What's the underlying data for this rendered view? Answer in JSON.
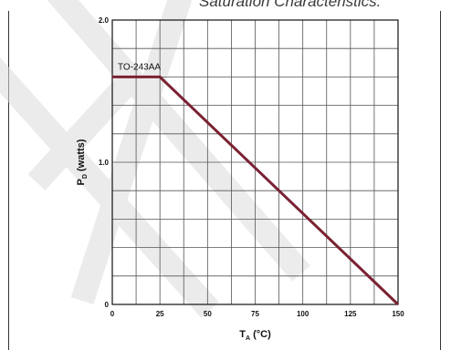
{
  "header": {
    "text": "Saturation Characteristics."
  },
  "chart_data": {
    "type": "line",
    "ylabel_main": "P",
    "ylabel_sub": "D",
    "ylabel_rest": " (watts)",
    "xlabel_main": "T",
    "xlabel_sub": "A",
    "xlabel_rest": " (°C)",
    "xlim": [
      0,
      150
    ],
    "ylim": [
      0,
      2.0
    ],
    "x_ticks": [
      0,
      25,
      50,
      75,
      100,
      125,
      150
    ],
    "x_tick_labels": [
      "0",
      "25",
      "50",
      "75",
      "100",
      "125",
      "150"
    ],
    "y_ticks": [
      0,
      1.0,
      2.0
    ],
    "y_tick_labels": [
      "0",
      "1.0",
      "2.0"
    ],
    "x_grid_step": 12.5,
    "y_grid_step": 0.2,
    "grid": true,
    "series": [
      {
        "name": "TO-243AA",
        "x": [
          0,
          25,
          150
        ],
        "y": [
          1.6,
          1.6,
          0
        ],
        "color": "#7a2233"
      }
    ]
  }
}
